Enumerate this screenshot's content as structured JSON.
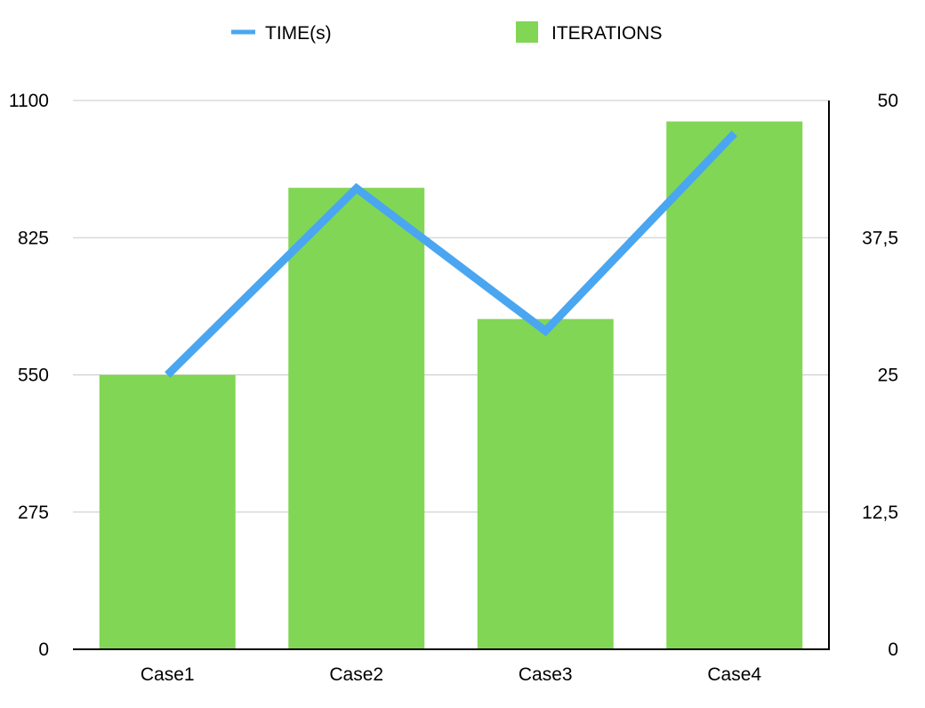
{
  "chart_data": {
    "type": "bar",
    "categories": [
      "Case1",
      "Case2",
      "Case3",
      "Case4"
    ],
    "series": [
      {
        "name": "ITERATIONS",
        "type": "bar",
        "axis": "left",
        "color": "#82d655",
        "values": [
          550,
          925,
          662,
          1058
        ]
      },
      {
        "name": "TIME(s)",
        "type": "line",
        "axis": "right",
        "color": "#4aa6f0",
        "values": [
          25,
          42,
          29,
          47
        ]
      }
    ],
    "y_left": {
      "ylim": [
        0,
        1100
      ],
      "ticks": [
        0,
        275,
        550,
        825,
        1100
      ],
      "tick_labels": [
        "0",
        "275",
        "550",
        "825",
        "1100"
      ]
    },
    "y_right": {
      "ylim": [
        0,
        50
      ],
      "ticks": [
        0,
        12.5,
        25,
        37.5,
        50
      ],
      "tick_labels": [
        "0",
        "12,5",
        "25",
        "37,5",
        "50"
      ]
    },
    "grid": true,
    "legend_position": "top-center"
  }
}
